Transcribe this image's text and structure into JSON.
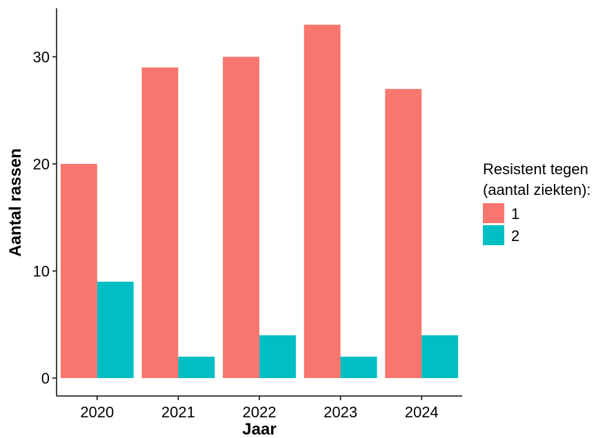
{
  "chart_data": {
    "type": "bar",
    "categories": [
      "2020",
      "2021",
      "2022",
      "2023",
      "2024"
    ],
    "series": [
      {
        "name": "1",
        "values": [
          20,
          29,
          30,
          33,
          27
        ],
        "color": "#F8766D"
      },
      {
        "name": "2",
        "values": [
          9,
          2,
          4,
          2,
          4
        ],
        "color": "#00BFC4"
      }
    ],
    "xlabel": "Jaar",
    "ylabel": "Aantal rassen",
    "ylim": [
      0,
      34.7
    ],
    "yticks": [
      0,
      10,
      20,
      30
    ],
    "legend": {
      "title": [
        "Resistent tegen",
        "(aantal ziekten):"
      ],
      "placement": "right"
    },
    "grid": false
  }
}
